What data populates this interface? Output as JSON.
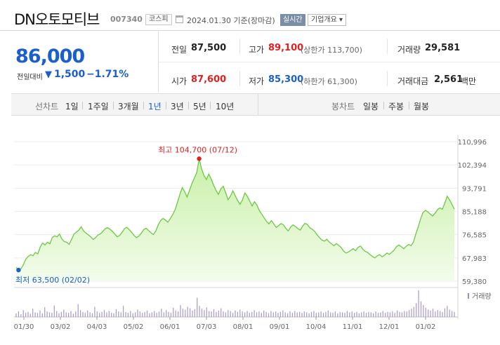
{
  "header": {
    "company_name": "DN오토모티브",
    "stock_code": "007340",
    "market": "코스피",
    "date_text": "2024.01.30 기준(장마감)",
    "realtime_label": "실시간",
    "company_info_label": "기업개요 ▾"
  },
  "price": {
    "current": "86,000",
    "change_label": "전일대비",
    "arrow": "▼",
    "change_amount": "1,500",
    "change_rate": "−1.71%"
  },
  "summary": {
    "prev_close_label": "전일",
    "prev_close": "87,500",
    "high_label": "고가",
    "high": "89,100",
    "upper_limit": "(상한가 113,700)",
    "volume_label": "거래량",
    "volume": "29,581",
    "open_label": "시가",
    "open": "87,600",
    "low_label": "저가",
    "low": "85,300",
    "lower_limit": "(하한가 61,300)",
    "amount_label": "거래대금",
    "amount": "2,561",
    "amount_unit": "백만"
  },
  "tabs": {
    "line_chart_label": "선차트",
    "periods": [
      "1일",
      "1주일",
      "3개월",
      "1년",
      "3년",
      "5년",
      "10년"
    ],
    "active_period": "1년",
    "candle_chart_label": "봉차트",
    "candle_periods": [
      "일봉",
      "주봉",
      "월봉"
    ]
  },
  "chart_data": {
    "type": "area",
    "x_tick_labels": [
      "01/30",
      "03/02",
      "04/03",
      "05/02",
      "06/01",
      "07/03",
      "08/01",
      "09/01",
      "10/04",
      "11/01",
      "12/01",
      "01/02"
    ],
    "y_tick_labels": [
      "110,996",
      "102,394",
      "93,791",
      "85,188",
      "76,585",
      "67,983",
      "59,380"
    ],
    "ylim": [
      59380,
      110996
    ],
    "prices": [
      64500,
      63500,
      64000,
      65500,
      67500,
      68500,
      69200,
      68800,
      70000,
      69500,
      72000,
      73500,
      72800,
      73800,
      73200,
      75500,
      76200,
      75800,
      76800,
      75000,
      74000,
      73800,
      73000,
      74800,
      76800,
      77500,
      78200,
      79500,
      78000,
      77200,
      76500,
      75800,
      74800,
      75500,
      76500,
      76900,
      77800,
      78800,
      79200,
      78600,
      77800,
      76800,
      75800,
      76300,
      77500,
      78800,
      79300,
      78400,
      77400,
      76300,
      75500,
      76100,
      77200,
      78500,
      79000,
      78100,
      77300,
      76600,
      78000,
      80200,
      81800,
      82600,
      82000,
      81200,
      82500,
      84000,
      85800,
      88500,
      91500,
      94000,
      92500,
      90500,
      93000,
      95500,
      97500,
      99500,
      104700,
      101000,
      98500,
      97000,
      99000,
      97200,
      95000,
      93000,
      91500,
      93500,
      94500,
      92200,
      89500,
      90800,
      92800,
      91000,
      89200,
      87800,
      89500,
      92000,
      90800,
      89000,
      87200,
      88800,
      87500,
      85500,
      84200,
      82800,
      81500,
      80600,
      81800,
      80600,
      79300,
      79900,
      80700,
      80200,
      78900,
      78000,
      79400,
      80200,
      79600,
      78800,
      78300,
      79800,
      80800,
      80300,
      79100,
      78600,
      77800,
      76500,
      75500,
      74600,
      74200,
      74900,
      73900,
      73200,
      72500,
      73300,
      72600,
      71800,
      70500,
      69800,
      70200,
      70800,
      71400,
      70700,
      71900,
      72400,
      71200,
      70400,
      70000,
      69200,
      68500,
      68000,
      68800,
      69200,
      68400,
      69000,
      69800,
      69300,
      70100,
      70900,
      72200,
      72800,
      72100,
      71400,
      72300,
      73000,
      72500,
      73800,
      76800,
      79500,
      82500,
      84800,
      85600,
      85000,
      84200,
      83500,
      84600,
      85800,
      86500,
      86000,
      88200,
      90800,
      89500,
      87800,
      86000
    ],
    "high": {
      "label": "최고",
      "value": "104,700",
      "date": "(07/12)"
    },
    "low": {
      "label": "최저",
      "value": "63,500",
      "date": "(02/02)"
    },
    "volume_legend": "거래량",
    "volumes": [
      8,
      12,
      6,
      15,
      9,
      11,
      7,
      18,
      10,
      9,
      14,
      8,
      21,
      12,
      10,
      9,
      25,
      13,
      8,
      11,
      16,
      10,
      9,
      13,
      7,
      12,
      28,
      15,
      11,
      9,
      14,
      10,
      8,
      22,
      12,
      9,
      11,
      15,
      10,
      13,
      9,
      8,
      17,
      12,
      10,
      24,
      11,
      9,
      13,
      8,
      10,
      16,
      12,
      9,
      11,
      14,
      8,
      10,
      13,
      9,
      12,
      18,
      10,
      15,
      11,
      9,
      20,
      14,
      12,
      26,
      18,
      16,
      22,
      19,
      14,
      17,
      42,
      24,
      18,
      15,
      21,
      13,
      12,
      17,
      11,
      14,
      19,
      12,
      10,
      15,
      13,
      9,
      14,
      11,
      16,
      12,
      10,
      13,
      9,
      11,
      15,
      10,
      12,
      9,
      14,
      11,
      8,
      13,
      10,
      12,
      9,
      11,
      14,
      10,
      8,
      12,
      9,
      13,
      10,
      11,
      9,
      12,
      10,
      8,
      11,
      13,
      9,
      10,
      12,
      9,
      11,
      14,
      10,
      9,
      12,
      8,
      11,
      10,
      9,
      13,
      10,
      12,
      9,
      11,
      8,
      10,
      12,
      9,
      11,
      10,
      8,
      12,
      9,
      10,
      13,
      9,
      11,
      10,
      12,
      9,
      14,
      11,
      10,
      13,
      12,
      15,
      18,
      22,
      30,
      58,
      34,
      26,
      20,
      16,
      14,
      18,
      12,
      15,
      13,
      11,
      19,
      24,
      16,
      13,
      11
    ]
  }
}
